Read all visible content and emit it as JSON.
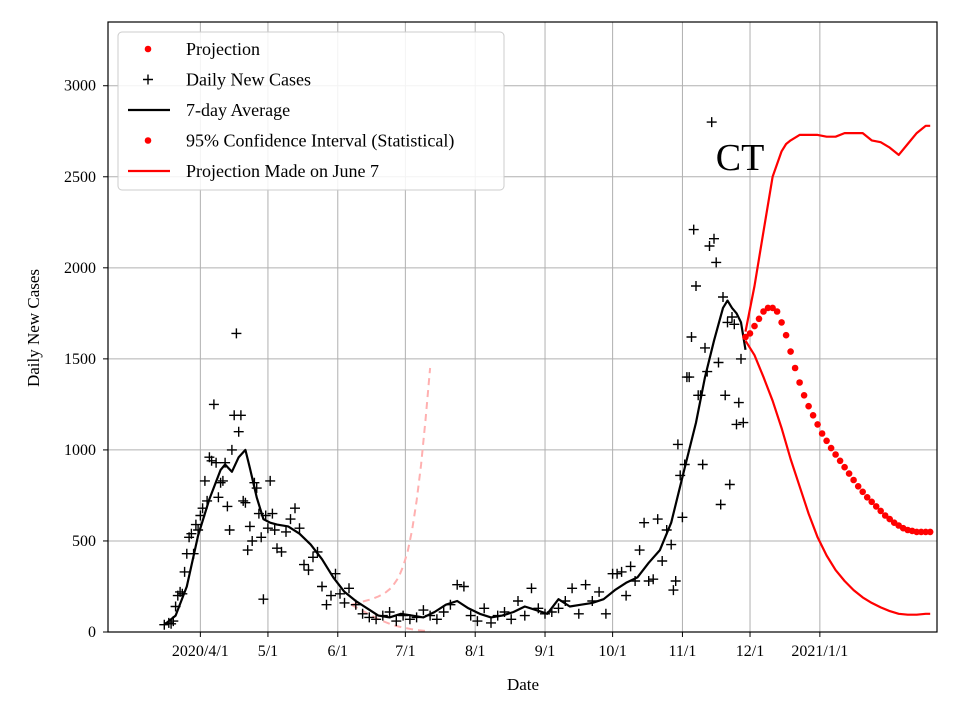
{
  "chart_data": {
    "type": "scatter",
    "title": "",
    "xlabel": "Date",
    "ylabel": "Daily New Cases",
    "annotation": "CT",
    "grid": true,
    "legend_position": "top-left",
    "xlim": [
      -25,
      343
    ],
    "ylim": [
      0,
      3350
    ],
    "x_ticks": [
      {
        "day": 16,
        "label": "2020/4/1"
      },
      {
        "day": 46,
        "label": "5/1"
      },
      {
        "day": 77,
        "label": "6/1"
      },
      {
        "day": 107,
        "label": "7/1"
      },
      {
        "day": 138,
        "label": "8/1"
      },
      {
        "day": 169,
        "label": "9/1"
      },
      {
        "day": 199,
        "label": "10/1"
      },
      {
        "day": 230,
        "label": "11/1"
      },
      {
        "day": 260,
        "label": "12/1"
      },
      {
        "day": 291,
        "label": "2021/1/1"
      }
    ],
    "y_ticks": [
      0,
      500,
      1000,
      1500,
      2000,
      2500,
      3000
    ],
    "x_unit_note": "x values are days since 2020-03-16",
    "legend": [
      {
        "label": "Projection",
        "marker": "dot",
        "color": "#ff0000"
      },
      {
        "label": "Daily New Cases",
        "marker": "plus",
        "color": "#000000"
      },
      {
        "label": "7-day Average",
        "marker": "line",
        "color": "#000000"
      },
      {
        "label": "95% Confidence Interval (Statistical)",
        "marker": "dot",
        "color": "#ff0000"
      },
      {
        "label": "Projection Made on June 7",
        "marker": "line",
        "color": "#ff0000"
      }
    ],
    "series": [
      {
        "name": "Daily New Cases",
        "kind": "scatter-plus",
        "color": "#000000",
        "x": [
          0,
          2,
          3,
          4,
          5,
          6,
          7,
          8,
          9,
          10,
          11,
          12,
          13,
          14,
          15,
          16,
          17,
          18,
          19,
          20,
          21,
          22,
          23,
          24,
          25,
          26,
          27,
          28,
          29,
          30,
          31,
          32,
          33,
          34,
          35,
          36,
          37,
          38,
          39,
          40,
          41,
          42,
          43,
          44,
          45,
          46,
          47,
          48,
          49,
          50,
          52,
          54,
          56,
          58,
          60,
          62,
          64,
          66,
          68,
          70,
          72,
          74,
          76,
          78,
          80,
          82,
          85,
          88,
          91,
          94,
          97,
          100,
          103,
          106,
          109,
          112,
          115,
          118,
          121,
          124,
          127,
          130,
          133,
          136,
          139,
          142,
          145,
          148,
          151,
          154,
          157,
          160,
          163,
          166,
          169,
          172,
          175,
          178,
          181,
          184,
          187,
          190,
          193,
          196,
          199,
          201,
          203,
          205,
          207,
          209,
          211,
          213,
          215,
          217,
          219,
          221,
          223,
          225,
          226,
          227,
          228,
          229,
          230,
          231,
          232,
          233,
          234,
          235,
          236,
          237,
          238,
          239,
          240,
          241,
          242,
          243,
          244,
          245,
          246,
          247,
          248,
          249,
          250,
          251,
          252,
          253,
          254,
          255,
          256,
          257
        ],
        "y": [
          40,
          50,
          45,
          60,
          140,
          200,
          220,
          210,
          330,
          430,
          520,
          540,
          430,
          590,
          560,
          640,
          680,
          830,
          720,
          960,
          940,
          1250,
          930,
          740,
          820,
          830,
          930,
          690,
          560,
          1000,
          1190,
          1640,
          1100,
          1190,
          720,
          710,
          450,
          580,
          500,
          820,
          790,
          650,
          520,
          180,
          640,
          570,
          830,
          650,
          560,
          460,
          440,
          550,
          620,
          680,
          570,
          370,
          340,
          410,
          440,
          250,
          150,
          200,
          320,
          210,
          160,
          240,
          150,
          100,
          80,
          70,
          90,
          110,
          60,
          90,
          70,
          80,
          120,
          90,
          70,
          110,
          150,
          260,
          250,
          90,
          60,
          130,
          50,
          90,
          110,
          70,
          170,
          90,
          240,
          130,
          100,
          110,
          130,
          170,
          240,
          100,
          260,
          170,
          220,
          100,
          320,
          320,
          330,
          200,
          360,
          280,
          450,
          600,
          280,
          290,
          620,
          390,
          560,
          480,
          230,
          280,
          1030,
          860,
          630,
          920,
          1400,
          1400,
          1620,
          2210,
          1900,
          1300,
          1300,
          920,
          1560,
          1430,
          2120,
          2800,
          2160,
          2030,
          1480,
          700,
          1840,
          1300,
          1700,
          810,
          1730,
          1690,
          1140,
          1260,
          1500,
          1150
        ]
      },
      {
        "name": "7-day Average",
        "kind": "line",
        "color": "#000000",
        "x": [
          0,
          5,
          10,
          15,
          20,
          25,
          27,
          30,
          33,
          36,
          38,
          41,
          44,
          47,
          50,
          55,
          60,
          65,
          70,
          75,
          80,
          85,
          90,
          95,
          100,
          105,
          110,
          115,
          120,
          125,
          130,
          135,
          140,
          145,
          150,
          155,
          160,
          165,
          170,
          175,
          180,
          185,
          190,
          195,
          200,
          205,
          210,
          215,
          220,
          225,
          230,
          233,
          236,
          240,
          244,
          248,
          250,
          252,
          254,
          256,
          258
        ],
        "y": [
          40,
          90,
          250,
          530,
          730,
          890,
          920,
          880,
          960,
          1000,
          900,
          740,
          620,
          600,
          590,
          580,
          540,
          480,
          400,
          300,
          220,
          170,
          130,
          90,
          80,
          100,
          90,
          80,
          110,
          150,
          170,
          130,
          100,
          80,
          90,
          110,
          140,
          120,
          100,
          180,
          140,
          150,
          160,
          180,
          230,
          270,
          300,
          380,
          450,
          600,
          850,
          1000,
          1150,
          1400,
          1600,
          1780,
          1820,
          1780,
          1750,
          1700,
          1550
        ]
      },
      {
        "name": "Projection",
        "kind": "dots",
        "color": "#ff0000",
        "x": [
          258,
          260,
          262,
          264,
          266,
          268,
          270,
          272,
          274,
          276,
          278,
          280,
          282,
          284,
          286,
          288,
          290,
          292,
          294,
          296,
          298,
          300,
          302,
          304,
          306,
          308,
          310,
          312,
          314,
          316,
          318,
          320,
          322,
          324,
          326,
          328,
          330,
          332,
          334,
          336,
          338,
          340
        ],
        "y": [
          1620,
          1640,
          1680,
          1720,
          1760,
          1780,
          1780,
          1760,
          1700,
          1630,
          1540,
          1450,
          1370,
          1300,
          1240,
          1190,
          1140,
          1090,
          1050,
          1010,
          975,
          940,
          905,
          870,
          835,
          800,
          770,
          740,
          715,
          690,
          665,
          640,
          620,
          600,
          585,
          570,
          560,
          555,
          550,
          550,
          550,
          550
        ]
      },
      {
        "name": "95% Confidence Interval (Statistical) upper",
        "kind": "line",
        "color": "#ff0000",
        "x": [
          258,
          262,
          266,
          270,
          274,
          276,
          278,
          282,
          286,
          290,
          294,
          298,
          302,
          306,
          310,
          314,
          318,
          322,
          326,
          330,
          334,
          338,
          340
        ],
        "y": [
          1650,
          1900,
          2200,
          2500,
          2640,
          2680,
          2700,
          2730,
          2730,
          2730,
          2720,
          2720,
          2740,
          2740,
          2740,
          2700,
          2690,
          2660,
          2620,
          2680,
          2740,
          2780,
          2780
        ]
      },
      {
        "name": "95% Confidence Interval (Statistical) lower",
        "kind": "line",
        "color": "#ff0000",
        "x": [
          258,
          262,
          266,
          270,
          274,
          278,
          282,
          286,
          290,
          294,
          298,
          302,
          306,
          310,
          314,
          318,
          322,
          326,
          330,
          334,
          338,
          340
        ],
        "y": [
          1600,
          1520,
          1400,
          1270,
          1120,
          950,
          800,
          650,
          520,
          420,
          340,
          280,
          230,
          190,
          160,
          135,
          115,
          100,
          95,
          95,
          100,
          100
        ]
      },
      {
        "name": "Projection Made on June 7",
        "kind": "dashed",
        "color": "#ffb0b0",
        "x": [
          83,
          86,
          89,
          92,
          95,
          98,
          101,
          104,
          106,
          108,
          110,
          112,
          114,
          116,
          118
        ],
        "y": [
          150,
          160,
          170,
          180,
          195,
          215,
          245,
          300,
          360,
          440,
          560,
          720,
          920,
          1170,
          1450
        ]
      },
      {
        "name": "Projection Made on June 7 band",
        "kind": "dashed",
        "color": "#ffb0b0",
        "x": [
          83,
          86,
          89,
          92,
          95,
          98,
          101,
          104,
          107,
          110,
          113,
          116,
          118
        ],
        "y": [
          150,
          130,
          110,
          90,
          70,
          55,
          40,
          30,
          22,
          15,
          10,
          6,
          5
        ]
      }
    ]
  }
}
